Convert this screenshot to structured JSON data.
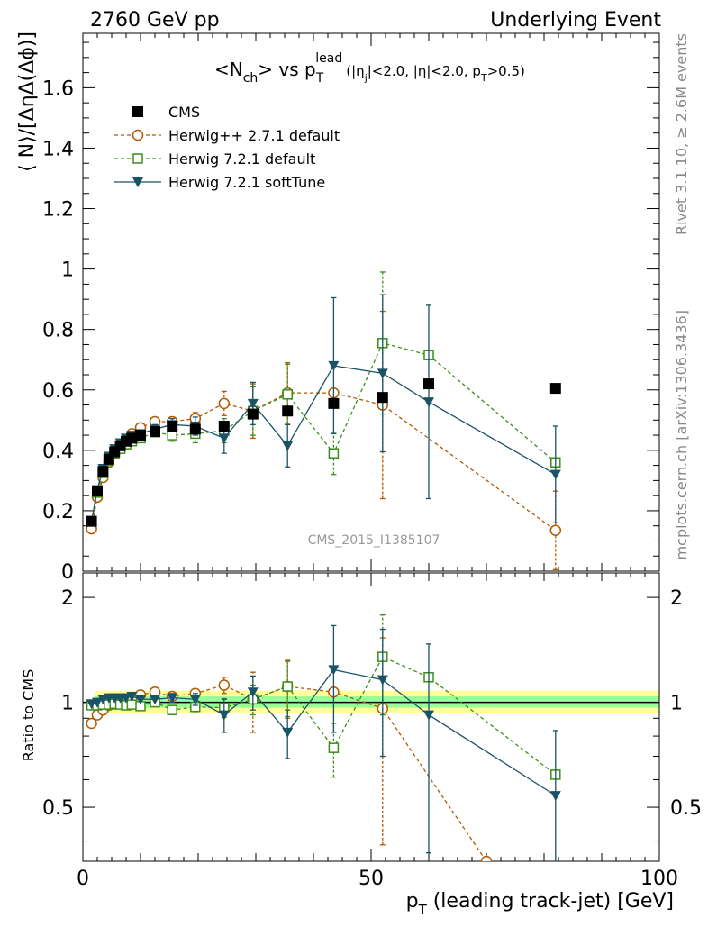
{
  "header": {
    "left": "2760 GeV pp",
    "right": "Underlying Event"
  },
  "side_labels": {
    "top": "Rivet 3.1.10, ≥ 2.6M events",
    "bottom": "mcplots.cern.ch [arXiv:1306.3436]"
  },
  "watermark": "CMS_2015_I1385107",
  "chart_data": [
    {
      "type": "scatter",
      "panel": "main",
      "title": "<N_ch> vs p_T^lead (|η_j|<2.0, |η|<2.0, p_T>0.5)",
      "title_parts": {
        "pre": "<N",
        "sub1": "ch",
        "mid": "> vs p",
        "sub2": "T",
        "sup": "lead",
        "cut1": "(|η",
        "sub3": "j",
        "cut2": "|<2.0, |η|<2.0, p",
        "sub4": "T",
        "cut3": ">0.5)"
      },
      "ylabel": "⟨ N⟩/[ΔηΔ(Δϕ)]",
      "xlim": [
        0,
        100
      ],
      "ylim": [
        0,
        1.78
      ],
      "yticks": [
        0,
        0.2,
        0.4,
        0.6,
        0.8,
        1,
        1.2,
        1.4,
        1.6
      ],
      "ytick_labels": [
        "0",
        "0.2",
        "0.4",
        "0.6",
        "0.8",
        "1",
        "1.2",
        "1.4",
        "1.6"
      ],
      "legend_position": "top-left",
      "series": [
        {
          "name": "CMS",
          "color": "#000000",
          "marker": "filled-square",
          "line": "none",
          "x": [
            1.5,
            2.5,
            3.5,
            4.5,
            5.5,
            6.5,
            7.5,
            8.5,
            10,
            12.5,
            15.5,
            19.5,
            24.5,
            29.5,
            35.5,
            43.5,
            52,
            60,
            82
          ],
          "y": [
            0.165,
            0.265,
            0.33,
            0.37,
            0.395,
            0.415,
            0.43,
            0.44,
            0.45,
            0.462,
            0.48,
            0.47,
            0.48,
            0.52,
            0.53,
            0.555,
            0.575,
            0.62,
            0.605
          ]
        },
        {
          "name": "Herwig++ 2.7.1 default",
          "color": "#b35900",
          "marker": "open-circle",
          "line": "dashed",
          "x": [
            1.5,
            2.5,
            3.5,
            4.5,
            5.5,
            6.5,
            7.5,
            8.5,
            10,
            12.5,
            15.5,
            19.5,
            24.5,
            29.5,
            35.5,
            43.5,
            52,
            82
          ],
          "y": [
            0.14,
            0.245,
            0.31,
            0.36,
            0.39,
            0.415,
            0.435,
            0.455,
            0.475,
            0.495,
            0.495,
            0.505,
            0.555,
            0.53,
            0.59,
            0.59,
            0.55,
            0.135
          ],
          "err": [
            0.005,
            0.005,
            0.005,
            0.005,
            0.005,
            0.006,
            0.007,
            0.008,
            0.01,
            0.01,
            0.015,
            0.02,
            0.04,
            0.09,
            0.1,
            0.0,
            0.31,
            0.13
          ]
        },
        {
          "name": "Herwig 7.2.1 default",
          "color": "#3a8f1a",
          "marker": "open-square",
          "line": "dashed",
          "x": [
            1.5,
            2.5,
            3.5,
            4.5,
            5.5,
            6.5,
            7.5,
            8.5,
            10,
            12.5,
            15.5,
            19.5,
            24.5,
            29.5,
            35.5,
            43.5,
            52,
            60,
            82
          ],
          "y": [
            0.165,
            0.26,
            0.325,
            0.365,
            0.39,
            0.405,
            0.42,
            0.43,
            0.44,
            0.46,
            0.45,
            0.455,
            0.465,
            0.53,
            0.585,
            0.39,
            0.755,
            0.715,
            0.36
          ],
          "err": [
            0.005,
            0.005,
            0.005,
            0.006,
            0.006,
            0.007,
            0.008,
            0.009,
            0.012,
            0.015,
            0.02,
            0.03,
            0.04,
            0.08,
            0.1,
            0.07,
            0.235,
            0.0,
            0.0
          ]
        },
        {
          "name": "Herwig 7.2.1 softTune",
          "color": "#1b5366",
          "marker": "filled-triangle-down",
          "line": "solid",
          "x": [
            1.5,
            2.5,
            3.5,
            4.5,
            5.5,
            6.5,
            7.5,
            8.5,
            10,
            12.5,
            15.5,
            19.5,
            24.5,
            29.5,
            35.5,
            43.5,
            52,
            60,
            82
          ],
          "y": [
            0.165,
            0.27,
            0.34,
            0.38,
            0.405,
            0.425,
            0.44,
            0.45,
            0.455,
            0.47,
            0.485,
            0.48,
            0.44,
            0.555,
            0.415,
            0.68,
            0.655,
            0.56,
            0.32
          ],
          "err": [
            0.005,
            0.005,
            0.005,
            0.006,
            0.006,
            0.007,
            0.008,
            0.009,
            0.012,
            0.015,
            0.02,
            0.03,
            0.05,
            0.07,
            0.07,
            0.225,
            0.26,
            0.32,
            0.16
          ]
        }
      ]
    },
    {
      "type": "scatter",
      "panel": "ratio",
      "ylabel": "Ratio to CMS",
      "xlabel": "p_T (leading track-jet) [GeV]",
      "xlabel_parts": {
        "pre": "p",
        "sub": "T",
        "post": " (leading track-jet) [GeV]"
      },
      "xlim": [
        0,
        100
      ],
      "ylim": [
        0.35,
        2.35
      ],
      "xticks": [
        0,
        50,
        100
      ],
      "xtick_labels": [
        "0",
        "50",
        "100"
      ],
      "yticks": [
        0.5,
        1,
        2
      ],
      "ytick_labels": [
        "0.5",
        "1",
        "2"
      ],
      "bands": [
        {
          "name": "CMS uncertainty (outer)",
          "color": "#ffff99",
          "x": [
            2,
            100
          ],
          "low": 0.93,
          "high": 1.08
        },
        {
          "name": "CMS uncertainty (inner)",
          "color": "#99ff99",
          "x": [
            2,
            100
          ],
          "low": 0.965,
          "high": 1.04
        }
      ],
      "series": [
        {
          "name": "Herwig++ 2.7.1 default",
          "color": "#b35900",
          "marker": "open-circle",
          "line": "dashed",
          "x": [
            1.5,
            2.5,
            3.5,
            4.5,
            5.5,
            6.5,
            7.5,
            8.5,
            10,
            12.5,
            15.5,
            19.5,
            24.5,
            29.5,
            35.5,
            43.5,
            52,
            70
          ],
          "y": [
            0.87,
            0.92,
            0.95,
            0.98,
            0.99,
            1.0,
            1.01,
            1.03,
            1.05,
            1.07,
            1.04,
            1.06,
            1.12,
            1.02,
            1.11,
            1.07,
            0.96,
            0.35
          ],
          "err": [
            0.0,
            0.0,
            0.0,
            0.0,
            0.0,
            0.0,
            0.0,
            0.0,
            0.0,
            0.01,
            0.02,
            0.03,
            0.06,
            0.2,
            0.21,
            0.0,
            0.57,
            0.0
          ]
        },
        {
          "name": "Herwig 7.2.1 default",
          "color": "#3a8f1a",
          "marker": "open-square",
          "line": "dashed",
          "x": [
            1.5,
            2.5,
            3.5,
            4.5,
            5.5,
            6.5,
            7.5,
            8.5,
            10,
            12.5,
            15.5,
            19.5,
            24.5,
            29.5,
            35.5,
            43.5,
            52,
            60,
            82
          ],
          "y": [
            0.98,
            0.98,
            0.985,
            0.985,
            0.99,
            0.985,
            0.98,
            0.985,
            0.975,
            1.0,
            0.95,
            0.97,
            0.965,
            1.02,
            1.11,
            0.74,
            1.35,
            1.18,
            0.62
          ],
          "err": [
            0.0,
            0.0,
            0.0,
            0.0,
            0.0,
            0.0,
            0.0,
            0.0,
            0.0,
            0.0,
            0.02,
            0.03,
            0.06,
            0.1,
            0.2,
            0.13,
            0.43,
            0.0,
            0.0
          ]
        },
        {
          "name": "Herwig 7.2.1 softTune",
          "color": "#1b5366",
          "marker": "filled-triangle-down",
          "line": "solid",
          "x": [
            1.5,
            2.5,
            3.5,
            4.5,
            5.5,
            6.5,
            7.5,
            8.5,
            10,
            12.5,
            15.5,
            19.5,
            24.5,
            29.5,
            35.5,
            43.5,
            52,
            60,
            82
          ],
          "y": [
            0.99,
            1.0,
            1.02,
            1.03,
            1.03,
            1.03,
            1.03,
            1.04,
            1.02,
            1.02,
            1.03,
            1.02,
            0.92,
            1.07,
            0.82,
            1.24,
            1.16,
            0.92,
            0.54
          ],
          "err": [
            0.0,
            0.0,
            0.0,
            0.0,
            0.0,
            0.0,
            0.0,
            0.0,
            0.0,
            0.0,
            0.03,
            0.04,
            0.1,
            0.12,
            0.13,
            0.42,
            0.46,
            0.55,
            0.29
          ]
        }
      ]
    }
  ]
}
